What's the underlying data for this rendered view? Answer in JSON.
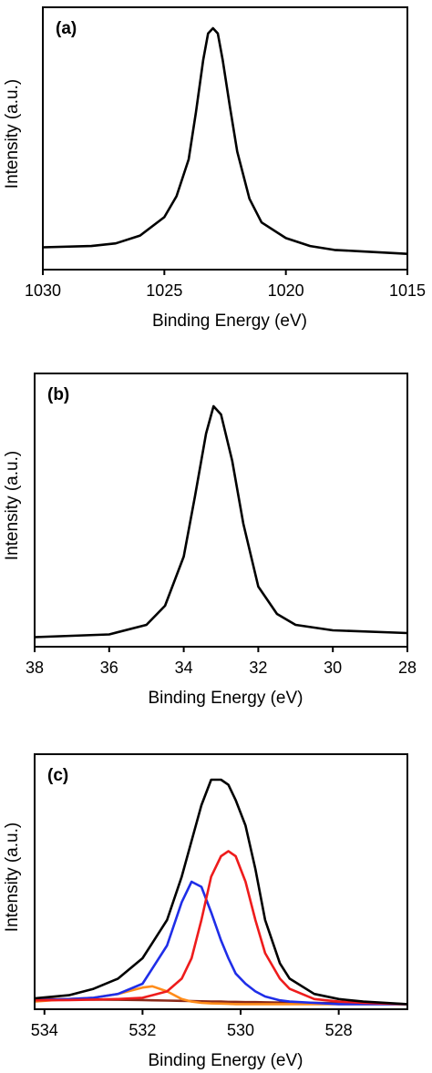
{
  "chart_data": [
    {
      "type": "line",
      "annotation": "(a)",
      "xlabel": "Binding Energy (eV)",
      "ylabel": "Intensity (a.u.)",
      "xlim": [
        1030,
        1015
      ],
      "xticks": [
        1030,
        1025,
        1020,
        1015
      ],
      "ylim": [
        0,
        100
      ],
      "color": "#000000",
      "x": [
        1030,
        1028,
        1027,
        1026,
        1025,
        1024.5,
        1024,
        1023.7,
        1023.4,
        1023.2,
        1023,
        1022.8,
        1022.6,
        1022.3,
        1022,
        1021.5,
        1021,
        1020,
        1019,
        1018,
        1017,
        1015
      ],
      "values": [
        8.5,
        9,
        10,
        13,
        20,
        28,
        42,
        60,
        80,
        90,
        92,
        90,
        80,
        62,
        45,
        27,
        18,
        12,
        9,
        7.5,
        7,
        6
      ]
    },
    {
      "type": "line",
      "annotation": "(b)",
      "xlabel": "Binding Energy (eV)",
      "ylabel": "Intensity (a.u.)",
      "xlim": [
        38,
        28
      ],
      "xticks": [
        38,
        36,
        34,
        32,
        30,
        28
      ],
      "ylim": [
        0,
        100
      ],
      "color": "#000000",
      "x": [
        38,
        36,
        35,
        34.5,
        34,
        33.7,
        33.4,
        33.2,
        33,
        32.7,
        32.4,
        32,
        31.5,
        31,
        30,
        28
      ],
      "values": [
        3.5,
        4.5,
        8,
        15,
        33,
        55,
        78,
        88,
        85,
        68,
        45,
        22,
        12,
        8,
        6,
        5
      ]
    },
    {
      "type": "line",
      "annotation": "(c)",
      "xlabel": "Binding Energy (eV)",
      "ylabel": "Intensity (a.u.)",
      "xlim": [
        534.2,
        526.6
      ],
      "xticks": [
        534,
        532,
        530,
        528
      ],
      "ylim": [
        0,
        100
      ],
      "x": [
        534.2,
        533.5,
        533,
        532.5,
        532,
        531.8,
        531.5,
        531.2,
        531,
        530.8,
        530.6,
        530.4,
        530.25,
        530.1,
        529.9,
        529.7,
        529.5,
        529.2,
        529,
        528.5,
        528,
        527.5,
        526.6
      ],
      "series": [
        {
          "color": "#8b2a1a",
          "values": [
            4,
            3.9,
            3.8,
            3.7,
            3.6,
            3.5,
            3.4,
            3.3,
            3.2,
            3.1,
            3,
            3,
            2.9,
            2.9,
            2.8,
            2.8,
            2.7,
            2.6,
            2.6,
            2.5,
            2.4,
            2.2,
            2
          ]
        },
        {
          "color": "#ff8c1a",
          "values": [
            3,
            4,
            4.5,
            6,
            8.5,
            9,
            7,
            4,
            3,
            2.5,
            2.3,
            2.2,
            2.1,
            2,
            2,
            2,
            2,
            2,
            2,
            2,
            2,
            2,
            2
          ]
        },
        {
          "color": "#1f2ee8",
          "values": [
            3.5,
            4,
            4.5,
            6,
            10,
            16,
            25,
            42,
            50,
            48,
            38,
            27,
            20,
            14,
            10,
            7,
            5,
            3.5,
            3,
            2.5,
            2,
            2,
            2
          ]
        },
        {
          "color": "#ee1c1c",
          "values": [
            3.5,
            3.6,
            3.8,
            4,
            4.5,
            5.5,
            7,
            12,
            20,
            35,
            52,
            60,
            62,
            60,
            50,
            35,
            22,
            12,
            8,
            4,
            3,
            2.5,
            2
          ]
        },
        {
          "color": "#000000",
          "values": [
            4.3,
            5.5,
            8,
            12,
            20,
            26,
            35,
            52,
            66,
            80,
            90,
            90,
            88,
            82,
            72,
            55,
            35,
            18,
            12,
            6,
            4,
            3,
            2
          ]
        }
      ]
    }
  ]
}
